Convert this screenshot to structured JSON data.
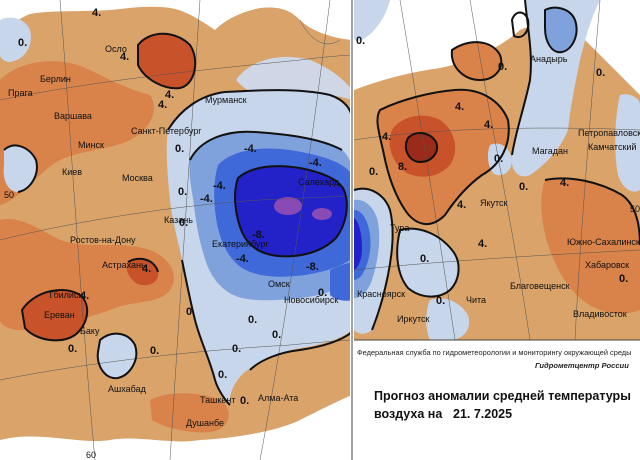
{
  "colors": {
    "warm_light": "#d9a36a",
    "warm_mid": "#d9824a",
    "warm_strong": "#c8522a",
    "warm_dark": "#9a2a1a",
    "cold_light": "#c7d6ea",
    "cold_mid": "#7fa2dc",
    "cold_strong": "#3f68d8",
    "cold_dark": "#2222c8",
    "cold_core": "#8a4ab6"
  },
  "footer": {
    "agency": "Федеральная служба по гидрометеорологии и мониторингу окружающей среды",
    "brand": "Гидрометцентр России",
    "title_line1": "Прогноз аномалии средней температуры",
    "title_line2_label": "воздуха на",
    "date": "21. 7.2025"
  },
  "grid_labels": {
    "lat_west": "50",
    "lat_east": "50",
    "lon_bottom": "60"
  },
  "west_cities": [
    "Осло",
    "Берлин",
    "Прага",
    "Варшава",
    "Мурманск",
    "Санкт-Петербург",
    "Минск",
    "Киев",
    "Москва",
    "Казань",
    "Ростов-на-Дону",
    "Астрахань",
    "Тбилиси",
    "Ереван",
    "Баку",
    "Ашхабад",
    "Ташкент",
    "Алма-Ата",
    "Душанбе",
    "Салехард",
    "Екатеринбург",
    "Омск",
    "Новосибирск"
  ],
  "east_cities": [
    "Анадырь",
    "Петропавловск",
    "Магадан",
    "Камчатский",
    "Якутск",
    "Тура",
    "Южно-Сахалинск",
    "Хабаровск",
    "Благовещенск",
    "Красноярск",
    "Чита",
    "Иркутск",
    "Владивосток"
  ],
  "isolines": {
    "west": [
      "4.",
      "0.",
      "4.",
      "4.",
      "0.",
      "0.",
      "-4.",
      "-4.",
      "-8.",
      "-8.",
      "-4.",
      "-4.",
      "0.",
      "0.",
      "0.",
      "4.",
      "4.",
      "0.",
      "0.",
      "-4.",
      "0.",
      "0.",
      "0.",
      "0.",
      "0.",
      "4."
    ],
    "east": [
      "0.",
      "4.",
      "0.",
      "4.",
      "8.",
      "4.",
      "0.",
      "4.",
      "0.",
      "0.",
      "4.",
      "0.",
      "0.",
      "0.",
      "4.",
      "0."
    ]
  }
}
